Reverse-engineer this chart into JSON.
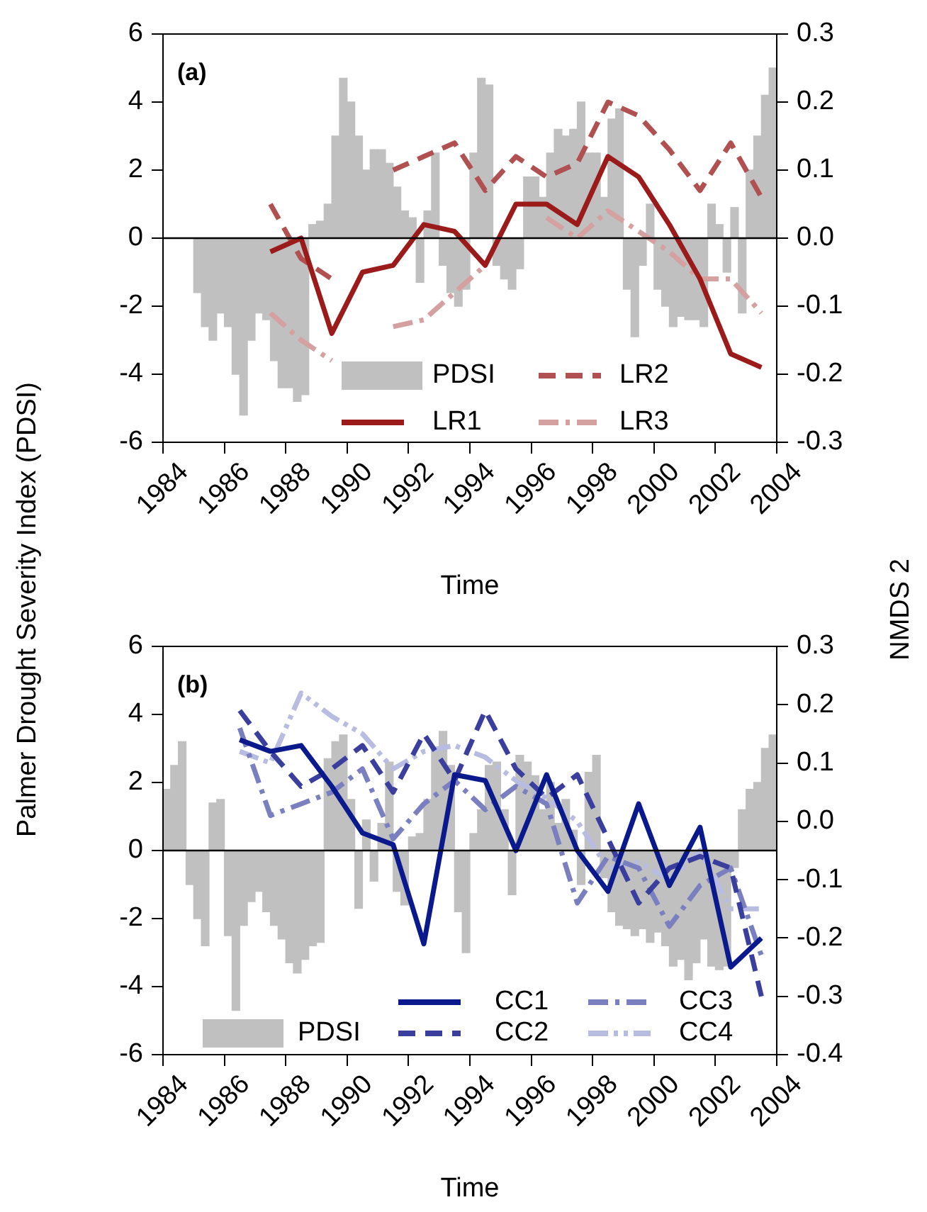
{
  "chart_data": [
    {
      "type": "bar",
      "title": "(a)",
      "xlabel": "Time",
      "ylabel": "Palmer Drought Severity Index (PDSI)",
      "y2label": "NMDS 2",
      "xlim": [
        1984,
        2004
      ],
      "xticks": [
        1984,
        1986,
        1988,
        1990,
        1992,
        1994,
        1996,
        1998,
        2000,
        2002,
        2004
      ],
      "ylim": [
        -6,
        6
      ],
      "yticks": [
        -6,
        -4,
        -2,
        0,
        2,
        4,
        6
      ],
      "y2lim": [
        -0.3,
        0.3
      ],
      "y2ticks": [
        -0.3,
        -0.2,
        -0.1,
        {
          "value": 0,
          "label": "0.0"
        },
        0.1,
        0.2,
        0.3
      ],
      "legend": "bottom",
      "ref_lines": [
        {
          "axis": "y",
          "value": 0,
          "color": "#000000"
        }
      ],
      "series": [
        {
          "name": "PDSI",
          "color": "#c0c0c0",
          "x": [
            1985.125,
            1985.375,
            1985.625,
            1985.875,
            1986.125,
            1986.375,
            1986.625,
            1986.875,
            1987.125,
            1987.375,
            1987.625,
            1987.875,
            1988.125,
            1988.375,
            1988.625,
            1988.875,
            1989.125,
            1989.375,
            1989.625,
            1989.875,
            1990.125,
            1990.375,
            1990.625,
            1990.875,
            1991.125,
            1991.375,
            1991.625,
            1991.875,
            1992.125,
            1992.375,
            1992.625,
            1992.875,
            1993.125,
            1993.375,
            1993.625,
            1993.875,
            1994.125,
            1994.375,
            1994.625,
            1994.875,
            1995.125,
            1995.375,
            1995.625,
            1995.875,
            1996.125,
            1996.375,
            1996.625,
            1996.875,
            1997.125,
            1997.375,
            1997.625,
            1997.875,
            1998.125,
            1998.375,
            1998.625,
            1998.875,
            1999.125,
            1999.375,
            1999.625,
            1999.875,
            2000.125,
            2000.375,
            2000.625,
            2000.875,
            2001.125,
            2001.375,
            2001.625,
            2001.875,
            2002.125,
            2002.375,
            2002.625,
            2002.875,
            2003.125,
            2003.375,
            2003.625,
            2003.875
          ],
          "values": [
            -1.6,
            -2.6,
            -3.0,
            -2.2,
            -2.6,
            -4.0,
            -5.2,
            -3.0,
            -2.2,
            -2.4,
            -3.6,
            -4.4,
            -4.4,
            -4.8,
            -4.6,
            0.4,
            0.5,
            1.0,
            3.0,
            4.7,
            4.0,
            3.0,
            2.0,
            2.6,
            2.6,
            2.2,
            1.5,
            0.8,
            0.6,
            -1.3,
            0.8,
            2.5,
            -0.8,
            -1.6,
            -2.0,
            -1.5,
            2.5,
            4.7,
            4.5,
            -0.8,
            -1.2,
            -1.5,
            -0.9,
            1.8,
            1.8,
            1.2,
            2.5,
            3.2,
            3.0,
            3.2,
            4.0,
            2.5,
            2.5,
            1.2,
            3.5,
            3.8,
            -1.5,
            -2.9,
            -0.8,
            1.0,
            -1.5,
            -2.0,
            -2.6,
            -2.3,
            -2.4,
            -2.4,
            -2.6,
            1.0,
            0.4,
            -1.0,
            0.9,
            -2.2,
            2.0,
            3.0,
            4.2,
            5.0
          ]
        },
        {
          "name": "LR1",
          "type": "line",
          "axis": "y2",
          "color": "#9b1b1b",
          "line_style": "solid",
          "x": [
            1987.5,
            1988.5,
            1989.5,
            1990.5,
            1991.5,
            1992.5,
            1993.5,
            1994.5,
            1995.5,
            1996.5,
            1997.5,
            1998.5,
            1999.5,
            2000.5,
            2001.5,
            2002.5,
            2003.5
          ],
          "values": [
            -0.02,
            0.0,
            -0.14,
            -0.05,
            -0.04,
            0.02,
            0.01,
            -0.04,
            0.05,
            0.05,
            0.02,
            0.12,
            0.09,
            0.02,
            -0.06,
            -0.17,
            -0.19
          ]
        },
        {
          "name": "LR2",
          "type": "line",
          "axis": "y2",
          "color": "#b05050",
          "line_style": "dashed",
          "x": [
            1987.5,
            1988.5,
            1989.5,
            1990.5,
            1991.5,
            1992.5,
            1993.5,
            1994.5,
            1995.5,
            1996.5,
            1997.5,
            1998.5,
            1999.5,
            2000.5,
            2001.5,
            2002.5,
            2003.5
          ],
          "values": [
            0.05,
            -0.03,
            -0.06,
            null,
            0.1,
            0.12,
            0.14,
            0.07,
            0.12,
            0.09,
            0.11,
            0.2,
            0.18,
            0.13,
            0.07,
            0.14,
            0.06
          ]
        },
        {
          "name": "LR3",
          "type": "line",
          "axis": "y2",
          "color": "#d4a0a0",
          "line_style": "dashdot",
          "x": [
            1987.5,
            1988.5,
            1989.5,
            1990.5,
            1991.5,
            1992.5,
            1993.5,
            1994.5,
            1995.5,
            1996.5,
            1997.5,
            1998.5,
            1999.5,
            2000.5,
            2001.5,
            2002.5,
            2003.5
          ],
          "values": [
            -0.11,
            -0.15,
            -0.18,
            null,
            -0.13,
            -0.12,
            -0.08,
            -0.04,
            null,
            0.03,
            0.0,
            0.04,
            0.01,
            -0.02,
            -0.06,
            -0.06,
            -0.11
          ]
        }
      ]
    },
    {
      "type": "bar",
      "title": "(b)",
      "xlabel": "Time",
      "xlim": [
        1984,
        2004
      ],
      "xticks": [
        1984,
        1986,
        1988,
        1990,
        1992,
        1994,
        1996,
        1998,
        2000,
        2002,
        2004
      ],
      "ylim": [
        -6,
        6
      ],
      "yticks": [
        -6,
        -4,
        -2,
        0,
        2,
        4,
        6
      ],
      "y2lim": [
        -0.4,
        0.3
      ],
      "y2ticks": [
        -0.4,
        -0.3,
        -0.2,
        -0.1,
        {
          "value": 0,
          "label": "0.0"
        },
        0.1,
        0.2,
        0.3
      ],
      "legend": "bottom",
      "ref_lines": [
        {
          "axis": "y",
          "value": 0,
          "color": "#000000"
        }
      ],
      "series": [
        {
          "name": "PDSI",
          "color": "#c0c0c0",
          "x": [
            1984.125,
            1984.375,
            1984.625,
            1984.875,
            1985.125,
            1985.375,
            1985.625,
            1985.875,
            1986.125,
            1986.375,
            1986.625,
            1986.875,
            1987.125,
            1987.375,
            1987.625,
            1987.875,
            1988.125,
            1988.375,
            1988.625,
            1988.875,
            1989.125,
            1989.375,
            1989.625,
            1989.875,
            1990.125,
            1990.375,
            1990.625,
            1990.875,
            1991.125,
            1991.375,
            1991.625,
            1991.875,
            1992.125,
            1992.375,
            1992.625,
            1992.875,
            1993.125,
            1993.375,
            1993.625,
            1993.875,
            1994.125,
            1994.375,
            1994.625,
            1994.875,
            1995.125,
            1995.375,
            1995.625,
            1995.875,
            1996.125,
            1996.375,
            1996.625,
            1996.875,
            1997.125,
            1997.375,
            1997.625,
            1997.875,
            1998.125,
            1998.375,
            1998.625,
            1998.875,
            1999.125,
            1999.375,
            1999.625,
            1999.875,
            2000.125,
            2000.375,
            2000.625,
            2000.875,
            2001.125,
            2001.375,
            2001.625,
            2001.875,
            2002.125,
            2002.375,
            2002.625,
            2002.875,
            2003.125,
            2003.375,
            2003.625,
            2003.875
          ],
          "values": [
            1.8,
            2.5,
            3.2,
            -1.0,
            -2.0,
            -2.8,
            1.4,
            1.5,
            -2.5,
            -4.7,
            -2.2,
            -1.5,
            -1.2,
            -1.8,
            -2.2,
            -2.6,
            -3.3,
            -3.6,
            -3.2,
            -2.8,
            -2.7,
            2.7,
            3.2,
            3.4,
            1.5,
            -1.7,
            0.9,
            -0.9,
            0.8,
            2.6,
            -1.2,
            -1.6,
            0.4,
            0.5,
            1.5,
            3.0,
            3.5,
            2.5,
            -1.8,
            -3.0,
            0.5,
            1.2,
            2.5,
            2.6,
            1.2,
            -1.3,
            2.8,
            2.6,
            2.2,
            1.2,
            2.0,
            0.8,
            1.5,
            0.6,
            -1.0,
            2.3,
            2.8,
            -0.8,
            -1.8,
            -2.2,
            -2.3,
            -2.5,
            -2.3,
            -2.7,
            -2.4,
            -2.8,
            -3.4,
            -3.2,
            -3.8,
            -3.3,
            -2.6,
            -3.4,
            -3.5,
            -3.4,
            -0.5,
            1.2,
            1.8,
            2.0,
            3.0,
            3.4
          ]
        },
        {
          "name": "CC1",
          "type": "line",
          "axis": "y2",
          "color": "#0a1a8c",
          "line_style": "solid",
          "x": [
            1986.5,
            1987.5,
            1988.5,
            1989.5,
            1990.5,
            1991.5,
            1992.5,
            1993.5,
            1994.5,
            1995.5,
            1996.5,
            1997.5,
            1998.5,
            1999.5,
            2000.5,
            2001.5,
            2002.5,
            2003.5
          ],
          "values": [
            0.14,
            0.12,
            0.13,
            0.06,
            -0.02,
            -0.04,
            -0.21,
            0.08,
            0.07,
            -0.05,
            0.08,
            -0.05,
            -0.12,
            0.03,
            -0.11,
            -0.01,
            -0.25,
            -0.2
          ]
        },
        {
          "name": "CC2",
          "type": "line",
          "axis": "y2",
          "color": "#3a3f9e",
          "line_style": "dashed",
          "x": [
            1986.5,
            1987.5,
            1988.5,
            1989.5,
            1990.5,
            1991.5,
            1992.5,
            1993.5,
            1994.5,
            1995.5,
            1996.5,
            1997.5,
            1998.5,
            1999.5,
            2000.5,
            2001.5,
            2002.5,
            2003.5
          ],
          "values": [
            0.19,
            0.12,
            0.06,
            0.09,
            0.13,
            0.05,
            0.15,
            0.07,
            0.19,
            0.09,
            0.04,
            0.08,
            -0.03,
            -0.14,
            -0.08,
            -0.06,
            -0.08,
            -0.3
          ]
        },
        {
          "name": "CC3",
          "type": "line",
          "axis": "y2",
          "color": "#7a7fc0",
          "line_style": "dashdot",
          "x": [
            1986.5,
            1987.5,
            1988.5,
            1989.5,
            1990.5,
            1991.5,
            1992.5,
            1993.5,
            1994.5,
            1995.5,
            1996.5,
            1997.5,
            1998.5,
            1999.5,
            2000.5,
            2001.5,
            2002.5,
            2003.5
          ],
          "values": [
            0.16,
            0.01,
            0.03,
            0.05,
            0.09,
            -0.03,
            0.03,
            0.07,
            0.02,
            0.06,
            0.03,
            -0.14,
            -0.06,
            -0.08,
            -0.18,
            -0.11,
            -0.08,
            -0.23
          ]
        },
        {
          "name": "CC4",
          "type": "line",
          "axis": "y2",
          "color": "#b8bce0",
          "line_style": "dashdotdot",
          "x": [
            1986.5,
            1987.5,
            1988.5,
            1989.5,
            1990.5,
            1991.5,
            1992.5,
            1993.5,
            1994.5,
            1995.5,
            1996.5,
            1997.5,
            1998.5,
            1999.5,
            2000.5,
            2001.5,
            2002.5,
            2003.5
          ],
          "values": [
            0.12,
            0.1,
            0.22,
            0.18,
            0.15,
            0.09,
            0.12,
            0.13,
            0.11,
            0.07,
            0.04,
            0.0,
            -0.08,
            -0.07,
            -0.1,
            -0.05,
            -0.15,
            -0.15
          ]
        }
      ]
    }
  ]
}
